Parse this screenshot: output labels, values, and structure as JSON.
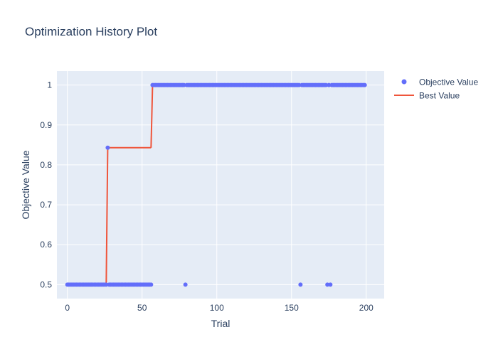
{
  "chart_data": {
    "type": "scatter",
    "title": "Optimization History Plot",
    "xlabel": "Trial",
    "ylabel": "Objective Value",
    "xlim": [
      -7,
      212
    ],
    "ylim": [
      0.465,
      1.035
    ],
    "x_ticks": [
      0,
      50,
      100,
      150,
      200
    ],
    "y_ticks": [
      0.5,
      0.6,
      0.7,
      0.8,
      0.9,
      1
    ],
    "y_tick_labels": [
      "0.5",
      "0.6",
      "0.7",
      "0.8",
      "0.9",
      "1"
    ],
    "grid": true,
    "legend_position": "top-right",
    "series": [
      {
        "name": "Objective Value",
        "kind": "markers",
        "color": "#636efa",
        "points": [
          [
            0,
            0.5
          ],
          [
            1,
            0.5
          ],
          [
            2,
            0.5
          ],
          [
            3,
            0.5
          ],
          [
            4,
            0.5
          ],
          [
            5,
            0.5
          ],
          [
            6,
            0.5
          ],
          [
            7,
            0.5
          ],
          [
            8,
            0.5
          ],
          [
            9,
            0.5
          ],
          [
            10,
            0.5
          ],
          [
            11,
            0.5
          ],
          [
            12,
            0.5
          ],
          [
            13,
            0.5
          ],
          [
            14,
            0.5
          ],
          [
            15,
            0.5
          ],
          [
            16,
            0.5
          ],
          [
            17,
            0.5
          ],
          [
            18,
            0.5
          ],
          [
            19,
            0.5
          ],
          [
            20,
            0.5
          ],
          [
            21,
            0.5
          ],
          [
            22,
            0.5
          ],
          [
            23,
            0.5
          ],
          [
            24,
            0.5
          ],
          [
            25,
            0.5
          ],
          [
            26,
            0.5
          ],
          [
            27,
            0.843
          ],
          [
            28,
            0.5
          ],
          [
            29,
            0.5
          ],
          [
            30,
            0.5
          ],
          [
            31,
            0.5
          ],
          [
            32,
            0.5
          ],
          [
            33,
            0.5
          ],
          [
            34,
            0.5
          ],
          [
            35,
            0.5
          ],
          [
            36,
            0.5
          ],
          [
            37,
            0.5
          ],
          [
            38,
            0.5
          ],
          [
            39,
            0.5
          ],
          [
            40,
            0.5
          ],
          [
            41,
            0.5
          ],
          [
            42,
            0.5
          ],
          [
            43,
            0.5
          ],
          [
            44,
            0.5
          ],
          [
            45,
            0.5
          ],
          [
            46,
            0.5
          ],
          [
            47,
            0.5
          ],
          [
            48,
            0.5
          ],
          [
            49,
            0.5
          ],
          [
            50,
            0.5
          ],
          [
            51,
            0.5
          ],
          [
            52,
            0.5
          ],
          [
            53,
            0.5
          ],
          [
            54,
            0.5
          ],
          [
            55,
            0.5
          ],
          [
            56,
            0.5
          ],
          [
            57,
            1
          ],
          [
            58,
            1
          ],
          [
            59,
            1
          ],
          [
            60,
            1
          ],
          [
            61,
            1
          ],
          [
            62,
            1
          ],
          [
            63,
            1
          ],
          [
            64,
            1
          ],
          [
            65,
            1
          ],
          [
            66,
            1
          ],
          [
            67,
            1
          ],
          [
            68,
            1
          ],
          [
            69,
            1
          ],
          [
            70,
            1
          ],
          [
            71,
            1
          ],
          [
            72,
            1
          ],
          [
            73,
            1
          ],
          [
            74,
            1
          ],
          [
            75,
            1
          ],
          [
            76,
            1
          ],
          [
            77,
            1
          ],
          [
            78,
            1
          ],
          [
            79,
            0.5
          ],
          [
            80,
            1
          ],
          [
            81,
            1
          ],
          [
            82,
            1
          ],
          [
            83,
            1
          ],
          [
            84,
            1
          ],
          [
            85,
            1
          ],
          [
            86,
            1
          ],
          [
            87,
            1
          ],
          [
            88,
            1
          ],
          [
            89,
            1
          ],
          [
            90,
            1
          ],
          [
            91,
            1
          ],
          [
            92,
            1
          ],
          [
            93,
            1
          ],
          [
            94,
            1
          ],
          [
            95,
            1
          ],
          [
            96,
            1
          ],
          [
            97,
            1
          ],
          [
            98,
            1
          ],
          [
            99,
            1
          ],
          [
            100,
            1
          ],
          [
            101,
            1
          ],
          [
            102,
            1
          ],
          [
            103,
            1
          ],
          [
            104,
            1
          ],
          [
            105,
            1
          ],
          [
            106,
            1
          ],
          [
            107,
            1
          ],
          [
            108,
            1
          ],
          [
            109,
            1
          ],
          [
            110,
            1
          ],
          [
            111,
            1
          ],
          [
            112,
            1
          ],
          [
            113,
            1
          ],
          [
            114,
            1
          ],
          [
            115,
            1
          ],
          [
            116,
            1
          ],
          [
            117,
            1
          ],
          [
            118,
            1
          ],
          [
            119,
            1
          ],
          [
            120,
            1
          ],
          [
            121,
            1
          ],
          [
            122,
            1
          ],
          [
            123,
            1
          ],
          [
            124,
            1
          ],
          [
            125,
            1
          ],
          [
            126,
            1
          ],
          [
            127,
            1
          ],
          [
            128,
            1
          ],
          [
            129,
            1
          ],
          [
            130,
            1
          ],
          [
            131,
            1
          ],
          [
            132,
            1
          ],
          [
            133,
            1
          ],
          [
            134,
            1
          ],
          [
            135,
            1
          ],
          [
            136,
            1
          ],
          [
            137,
            1
          ],
          [
            138,
            1
          ],
          [
            139,
            1
          ],
          [
            140,
            1
          ],
          [
            141,
            1
          ],
          [
            142,
            1
          ],
          [
            143,
            1
          ],
          [
            144,
            1
          ],
          [
            145,
            1
          ],
          [
            146,
            1
          ],
          [
            147,
            1
          ],
          [
            148,
            1
          ],
          [
            149,
            1
          ],
          [
            150,
            1
          ],
          [
            151,
            1
          ],
          [
            152,
            1
          ],
          [
            153,
            1
          ],
          [
            154,
            1
          ],
          [
            155,
            1
          ],
          [
            156,
            0.5
          ],
          [
            157,
            1
          ],
          [
            158,
            1
          ],
          [
            159,
            1
          ],
          [
            160,
            1
          ],
          [
            161,
            1
          ],
          [
            162,
            1
          ],
          [
            163,
            1
          ],
          [
            164,
            1
          ],
          [
            165,
            1
          ],
          [
            166,
            1
          ],
          [
            167,
            1
          ],
          [
            168,
            1
          ],
          [
            169,
            1
          ],
          [
            170,
            1
          ],
          [
            171,
            1
          ],
          [
            172,
            1
          ],
          [
            173,
            1
          ],
          [
            174,
            0.5
          ],
          [
            175,
            1
          ],
          [
            176,
            0.5
          ],
          [
            177,
            1
          ],
          [
            178,
            1
          ],
          [
            179,
            1
          ],
          [
            180,
            1
          ],
          [
            181,
            1
          ],
          [
            182,
            1
          ],
          [
            183,
            1
          ],
          [
            184,
            1
          ],
          [
            185,
            1
          ],
          [
            186,
            1
          ],
          [
            187,
            1
          ],
          [
            188,
            1
          ],
          [
            189,
            1
          ],
          [
            190,
            1
          ],
          [
            191,
            1
          ],
          [
            192,
            1
          ],
          [
            193,
            1
          ],
          [
            194,
            1
          ],
          [
            195,
            1
          ],
          [
            196,
            1
          ],
          [
            197,
            1
          ],
          [
            198,
            1
          ],
          [
            199,
            1
          ]
        ]
      },
      {
        "name": "Best Value",
        "kind": "line",
        "color": "#ef553b",
        "points": [
          [
            0,
            0.5
          ],
          [
            26,
            0.5
          ],
          [
            27,
            0.843
          ],
          [
            56,
            0.843
          ],
          [
            57,
            1
          ],
          [
            199,
            1
          ]
        ]
      }
    ]
  }
}
